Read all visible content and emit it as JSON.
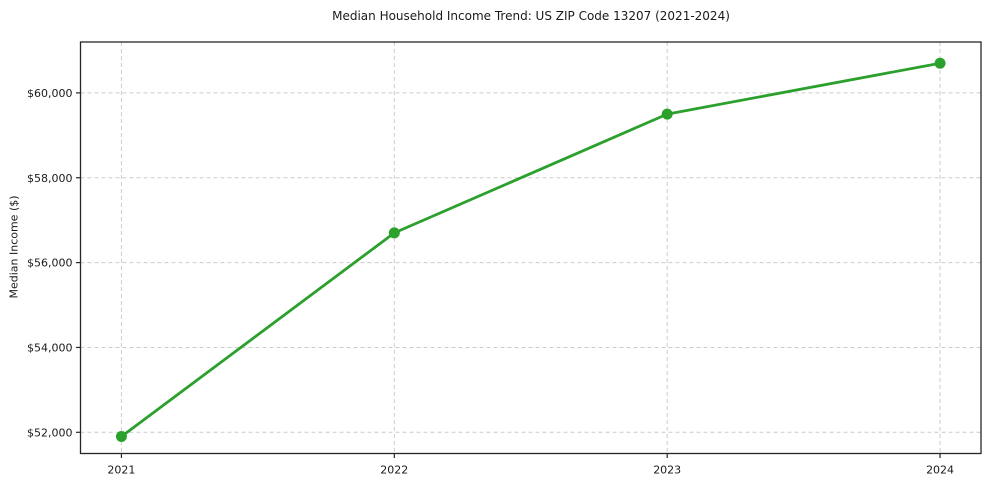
{
  "chart_data": {
    "type": "line",
    "title": "Median Household Income Trend: US ZIP Code 13207 (2021-2024)",
    "xlabel": "",
    "ylabel": "Median Income ($)",
    "x": [
      2021,
      2022,
      2023,
      2024
    ],
    "values": [
      51900,
      56700,
      59500,
      60700
    ],
    "xticks": [
      {
        "value": 2021,
        "label": "2021"
      },
      {
        "value": 2022,
        "label": "2022"
      },
      {
        "value": 2023,
        "label": "2023"
      },
      {
        "value": 2024,
        "label": "2024"
      }
    ],
    "yticks": [
      {
        "value": 52000,
        "label": "$52,000"
      },
      {
        "value": 54000,
        "label": "$54,000"
      },
      {
        "value": 56000,
        "label": "$56,000"
      },
      {
        "value": 58000,
        "label": "$58,000"
      },
      {
        "value": 60000,
        "label": "$60,000"
      }
    ],
    "xlim": [
      2020.85,
      2024.15
    ],
    "ylim": [
      51500,
      61200
    ],
    "grid": true,
    "legend": false,
    "colors": {
      "line": "#2ca02c",
      "marker": "#2ca02c",
      "grid": "#cccccc",
      "spine": "#262626",
      "text": "#1a1a1a",
      "background": "#ffffff"
    }
  }
}
